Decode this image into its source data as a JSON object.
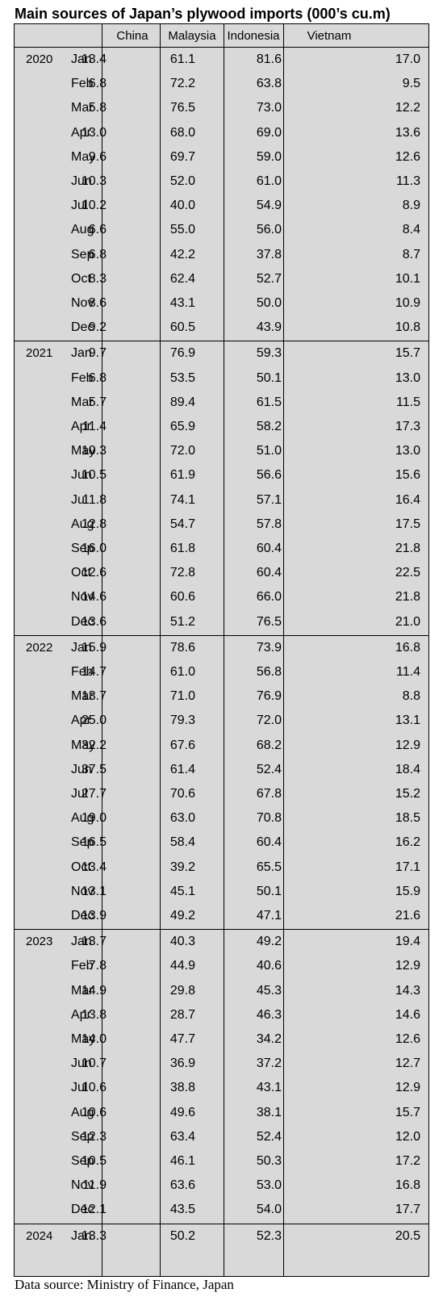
{
  "title": "Main sources of Japan’s plywood imports (000’s cu.m)",
  "source": "Data source: Ministry of Finance, Japan",
  "chart_data": {
    "type": "table",
    "columns": [
      "China",
      "Malaysia",
      "Indonesia",
      "Vietnam"
    ],
    "blocks": [
      {
        "year": "2020",
        "rows": [
          {
            "month": "Jan",
            "values": [
              "13.4",
              "61.1",
              "81.6",
              "17.0"
            ]
          },
          {
            "month": "Feb",
            "values": [
              "6.8",
              "72.2",
              "63.8",
              "9.5"
            ]
          },
          {
            "month": "Mar",
            "values": [
              "5.8",
              "76.5",
              "73.0",
              "12.2"
            ]
          },
          {
            "month": "Apr",
            "values": [
              "13.0",
              "68.0",
              "69.0",
              "13.6"
            ]
          },
          {
            "month": "May",
            "values": [
              "9.6",
              "69.7",
              "59.0",
              "12.6"
            ]
          },
          {
            "month": "Jun",
            "values": [
              "10.3",
              "52.0",
              "61.0",
              "11.3"
            ]
          },
          {
            "month": "Jul",
            "values": [
              "10.2",
              "40.0",
              "54.9",
              "8.9"
            ]
          },
          {
            "month": "Aug",
            "values": [
              "6.6",
              "55.0",
              "56.0",
              "8.4"
            ]
          },
          {
            "month": "Sep",
            "values": [
              "6.8",
              "42.2",
              "37.8",
              "8.7"
            ]
          },
          {
            "month": "Oct",
            "values": [
              "8.3",
              "62.4",
              "52.7",
              "10.1"
            ]
          },
          {
            "month": "Nov",
            "values": [
              "8.6",
              "43.1",
              "50.0",
              "10.9"
            ]
          },
          {
            "month": "Dec",
            "values": [
              "9.2",
              "60.5",
              "43.9",
              "10.8"
            ]
          }
        ]
      },
      {
        "year": "2021",
        "rows": [
          {
            "month": "Jan",
            "values": [
              "9.7",
              "76.9",
              "59.3",
              "15.7"
            ]
          },
          {
            "month": "Feb",
            "values": [
              "6.8",
              "53.5",
              "50.1",
              "13.0"
            ]
          },
          {
            "month": "Mar",
            "values": [
              "5.7",
              "89.4",
              "61.5",
              "11.5"
            ]
          },
          {
            "month": "Apr",
            "values": [
              "11.4",
              "65.9",
              "58.2",
              "17.3"
            ]
          },
          {
            "month": "May",
            "values": [
              "10.3",
              "72.0",
              "51.0",
              "13.0"
            ]
          },
          {
            "month": "Jun",
            "values": [
              "10.5",
              "61.9",
              "56.6",
              "15.6"
            ]
          },
          {
            "month": "Jul",
            "values": [
              "11.8",
              "74.1",
              "57.1",
              "16.4"
            ]
          },
          {
            "month": "Aug",
            "values": [
              "12.8",
              "54.7",
              "57.8",
              "17.5"
            ]
          },
          {
            "month": "Sep",
            "values": [
              "16.0",
              "61.8",
              "60.4",
              "21.8"
            ]
          },
          {
            "month": "Oct",
            "values": [
              "12.6",
              "72.8",
              "60.4",
              "22.5"
            ]
          },
          {
            "month": "Nov",
            "values": [
              "14.6",
              "60.6",
              "66.0",
              "21.8"
            ]
          },
          {
            "month": "Dec",
            "values": [
              "13.6",
              "51.2",
              "76.5",
              "21.0"
            ]
          }
        ]
      },
      {
        "year": "2022",
        "rows": [
          {
            "month": "Jan",
            "values": [
              "15.9",
              "78.6",
              "73.9",
              "16.8"
            ]
          },
          {
            "month": "Feb",
            "values": [
              "14.7",
              "61.0",
              "56.8",
              "11.4"
            ]
          },
          {
            "month": "Mar",
            "values": [
              "13.7",
              "71.0",
              "76.9",
              "8.8"
            ]
          },
          {
            "month": "Apr",
            "values": [
              "25.0",
              "79.3",
              "72.0",
              "13.1"
            ]
          },
          {
            "month": "May",
            "values": [
              "32.2",
              "67.6",
              "68.2",
              "12.9"
            ]
          },
          {
            "month": "Jun",
            "values": [
              "37.5",
              "61.4",
              "52.4",
              "18.4"
            ]
          },
          {
            "month": "Jul",
            "values": [
              "27.7",
              "70.6",
              "67.8",
              "15.2"
            ]
          },
          {
            "month": "Aug",
            "values": [
              "19.0",
              "63.0",
              "70.8",
              "18.5"
            ]
          },
          {
            "month": "Sep",
            "values": [
              "16.5",
              "58.4",
              "60.4",
              "16.2"
            ]
          },
          {
            "month": "Oct",
            "values": [
              "13.4",
              "39.2",
              "65.5",
              "17.1"
            ]
          },
          {
            "month": "Nov",
            "values": [
              "13.1",
              "45.1",
              "50.1",
              "15.9"
            ]
          },
          {
            "month": "Dec",
            "values": [
              "13.9",
              "49.2",
              "47.1",
              "21.6"
            ]
          }
        ]
      },
      {
        "year": "2023",
        "rows": [
          {
            "month": "Jan",
            "values": [
              "13.7",
              "40.3",
              "49.2",
              "19.4"
            ]
          },
          {
            "month": "Feb",
            "values": [
              "7.8",
              "44.9",
              "40.6",
              "12.9"
            ]
          },
          {
            "month": "Mar",
            "values": [
              "14.9",
              "29.8",
              "45.3",
              "14.3"
            ]
          },
          {
            "month": "Apr",
            "values": [
              "13.8",
              "28.7",
              "46.3",
              "14.6"
            ]
          },
          {
            "month": "May",
            "values": [
              "14.0",
              "47.7",
              "34.2",
              "12.6"
            ]
          },
          {
            "month": "Jun",
            "values": [
              "10.7",
              "36.9",
              "37.2",
              "12.7"
            ]
          },
          {
            "month": "Jul",
            "values": [
              "10.6",
              "38.8",
              "43.1",
              "12.9"
            ]
          },
          {
            "month": "Aug",
            "values": [
              "10.6",
              "49.6",
              "38.1",
              "15.7"
            ]
          },
          {
            "month": "Sep",
            "values": [
              "12.3",
              "63.4",
              "52.4",
              "12.0"
            ]
          },
          {
            "month": "Sep",
            "values": [
              "10.5",
              "46.1",
              "50.3",
              "17.2"
            ]
          },
          {
            "month": "Nov",
            "values": [
              "11.9",
              "63.6",
              "53.0",
              "16.8"
            ]
          },
          {
            "month": "Dec",
            "values": [
              "12.1",
              "43.5",
              "54.0",
              "17.7"
            ]
          }
        ]
      },
      {
        "year": "2024",
        "rows": [
          {
            "month": "Jan",
            "values": [
              "13.3",
              "50.2",
              "52.3",
              "20.5"
            ]
          }
        ]
      }
    ]
  }
}
